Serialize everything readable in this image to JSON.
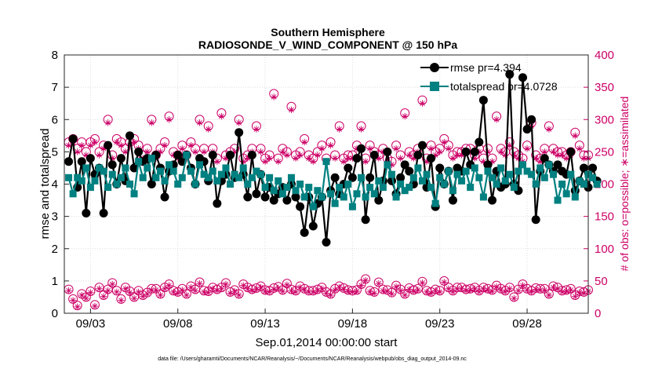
{
  "chart_data": {
    "type": "line",
    "title": "Southern Hemisphere",
    "subtitle": "RADIOSONDE_V_WIND_COMPONENT @ 150 hPa",
    "xlabel": "Sep.01,2014 00:00:00 start",
    "ylabel": "rmse and totalspread",
    "y2label": "# of obs: o=possible; ∗=assimilated",
    "footnote": "data file: /Users/gharamti/Documents/NCAR/Reanalysis/~/Documents/NCAR/Reanalysis/webpub/obs_diag_output_2014-09.nc",
    "xlim": [
      1.5,
      31.5
    ],
    "ylim": [
      0,
      8
    ],
    "y2lim": [
      0,
      400
    ],
    "x_ticks": [
      3,
      8,
      13,
      18,
      23,
      28
    ],
    "x_tick_labels": [
      "09/03",
      "09/08",
      "09/13",
      "09/18",
      "09/23",
      "09/28"
    ],
    "y_ticks": [
      0,
      1,
      2,
      3,
      4,
      5,
      6,
      7,
      8
    ],
    "y2_ticks": [
      0,
      50,
      100,
      150,
      200,
      250,
      300,
      350,
      400
    ],
    "grid": true,
    "colors": {
      "rmse": "#000000",
      "spread": "#008080",
      "obs": "#cc0066"
    },
    "series": [
      {
        "name": "rmse pr=4.394",
        "marker": "circle",
        "values": [
          4.7,
          5.4,
          3.9,
          4.7,
          3.1,
          4.8,
          4.3,
          4.5,
          3.1,
          5.2,
          4.6,
          4.0,
          4.8,
          4.1,
          5.5,
          4.5,
          5.0,
          4.7,
          4.8,
          4.0,
          4.9,
          4.5,
          3.6,
          4.4,
          4.6,
          4.9,
          4.7,
          4.9,
          4.5,
          4.0,
          4.8,
          4.7,
          4.1,
          4.9,
          3.4,
          4.1,
          4.3,
          4.9,
          4.2,
          5.6,
          4.3,
          3.6,
          4.9,
          3.7,
          4.3,
          3.6,
          3.9,
          3.5,
          3.7,
          3.9,
          3.5,
          4.0,
          3.6,
          3.3,
          2.5,
          3.6,
          2.7,
          3.4,
          3.6,
          2.2,
          3.8,
          4.2,
          3.7,
          4.0,
          4.5,
          4.2,
          4.8,
          5.1,
          2.9,
          4.2,
          4.9,
          3.5,
          4.1,
          5.0,
          4.1,
          3.7,
          4.2,
          4.6,
          4.4,
          4.0,
          4.9,
          5.2,
          3.9,
          4.8,
          3.3,
          4.5,
          4.0,
          4.4,
          3.5,
          4.5,
          4.4,
          5.0,
          4.6,
          5.0,
          5.3,
          6.6,
          4.6,
          3.5,
          4.4,
          3.9,
          4.0,
          7.4,
          4.0,
          3.8,
          7.3,
          5.7,
          6.0,
          2.9,
          4.4,
          4.8,
          4.6,
          4.4,
          4.6,
          4.4,
          4.3,
          5.0,
          3.8,
          4.1,
          4.5,
          3.9,
          4.5,
          4.1
        ]
      },
      {
        "name": "totalspread pr=4.0728",
        "marker": "square",
        "values": [
          4.2,
          3.7,
          4.2,
          4.1,
          4.5,
          3.9,
          4.1,
          4.5,
          4.4,
          3.9,
          4.3,
          4.0,
          4.2,
          4.5,
          4.0,
          3.7,
          4.7,
          4.2,
          4.5,
          4.8,
          4.2,
          4.4,
          4.1,
          4.6,
          4.4,
          4.0,
          4.2,
          4.9,
          4.4,
          4.0,
          4.6,
          4.3,
          4.2,
          4.4,
          4.1,
          4.3,
          4.5,
          4.0,
          4.3,
          4.2,
          4.5,
          4.0,
          4.2,
          4.4,
          4.3,
          3.9,
          4.2,
          3.8,
          4.1,
          3.7,
          3.9,
          4.2,
          3.8,
          4.0,
          3.6,
          3.9,
          3.3,
          3.8,
          3.6,
          4.7,
          3.7,
          3.4,
          3.9,
          3.6,
          4.0,
          3.3,
          3.7,
          4.2,
          3.6,
          3.9,
          3.7,
          4.1,
          3.9,
          4.6,
          4.3,
          3.6,
          4.0,
          3.8,
          3.9,
          4.2,
          4.5,
          4.1,
          4.3,
          3.9,
          3.4,
          4.2,
          4.0,
          4.4,
          3.8,
          4.3,
          4.1,
          4.4,
          3.9,
          4.5,
          4.2,
          3.6,
          4.4,
          4.2,
          4.0,
          4.5,
          4.1,
          4.3,
          3.9,
          4.4,
          4.6,
          4.4,
          4.3,
          4.0,
          4.5,
          4.2,
          4.6,
          4.3,
          3.5,
          4.0,
          3.7,
          4.3,
          3.6,
          4.1,
          4.0,
          4.3,
          4.2,
          4.0
        ]
      },
      {
        "name": "obs possible",
        "marker": "open-circle",
        "axis": "right",
        "values": [
          265,
          270,
          255,
          265,
          250,
          265,
          270,
          250,
          260,
          300,
          245,
          270,
          265,
          255,
          265,
          270,
          260,
          245,
          255,
          300,
          245,
          255,
          265,
          305,
          250,
          245,
          260,
          245,
          265,
          255,
          300,
          255,
          290,
          255,
          240,
          310,
          245,
          250,
          255,
          300,
          240,
          245,
          255,
          290,
          255,
          240,
          245,
          340,
          240,
          255,
          250,
          320,
          245,
          250,
          270,
          245,
          240,
          250,
          260,
          240,
          265,
          245,
          290,
          240,
          245,
          245,
          260,
          290,
          240,
          260,
          250,
          245,
          255,
          240,
          235,
          260,
          245,
          310,
          250,
          245,
          255,
          330,
          240,
          260,
          250,
          255,
          270,
          260,
          245,
          250,
          250,
          255,
          255,
          245,
          255,
          240,
          255,
          240,
          305,
          255,
          250,
          265,
          250,
          245,
          240,
          260,
          295,
          245,
          240,
          255,
          290,
          255,
          250,
          250,
          245,
          250,
          280,
          260,
          245,
          245,
          250,
          250
        ]
      },
      {
        "name": "obs assimilated",
        "marker": "star",
        "axis": "right",
        "values": [
          260,
          265,
          250,
          260,
          245,
          260,
          265,
          245,
          255,
          295,
          240,
          265,
          260,
          250,
          260,
          265,
          255,
          240,
          250,
          295,
          240,
          250,
          260,
          300,
          245,
          240,
          255,
          240,
          260,
          250,
          295,
          250,
          285,
          250,
          235,
          305,
          240,
          245,
          250,
          295,
          235,
          240,
          250,
          285,
          250,
          235,
          240,
          335,
          235,
          250,
          245,
          315,
          240,
          245,
          265,
          240,
          235,
          245,
          255,
          235,
          260,
          240,
          285,
          235,
          240,
          240,
          255,
          285,
          235,
          255,
          245,
          240,
          250,
          235,
          230,
          255,
          240,
          305,
          245,
          240,
          250,
          325,
          235,
          255,
          245,
          250,
          265,
          255,
          240,
          245,
          245,
          250,
          250,
          240,
          250,
          235,
          250,
          235,
          300,
          250,
          245,
          260,
          245,
          240,
          235,
          255,
          290,
          240,
          235,
          250,
          285,
          250,
          245,
          245,
          240,
          245,
          275,
          255,
          240,
          240,
          245,
          245
        ]
      },
      {
        "name": "obs possible (lower)",
        "marker": "open-circle",
        "axis": "right",
        "values": [
          37,
          22,
          12,
          30,
          25,
          34,
          13,
          40,
          28,
          37,
          47,
          35,
          22,
          40,
          34,
          25,
          35,
          28,
          32,
          38,
          38,
          30,
          40,
          45,
          35,
          33,
          38,
          30,
          42,
          37,
          48,
          35,
          34,
          40,
          37,
          40,
          47,
          33,
          36,
          30,
          45,
          40,
          37,
          39,
          42,
          36,
          35,
          39,
          41,
          36,
          46,
          37,
          35,
          42,
          38,
          35,
          35,
          37,
          40,
          33,
          30,
          38,
          42,
          39,
          36,
          35,
          36,
          45,
          53,
          35,
          33,
          48,
          37,
          36,
          32,
          43,
          37,
          30,
          39,
          36,
          38,
          49,
          35,
          33,
          37,
          35,
          50,
          40,
          35,
          40,
          40,
          37,
          38,
          40,
          35,
          40,
          38,
          36,
          43,
          38,
          35,
          40,
          25,
          37,
          45,
          38,
          35,
          39,
          38,
          38,
          30,
          42,
          40,
          35,
          36,
          38,
          28,
          34,
          33,
          36,
          38,
          1
        ]
      },
      {
        "name": "obs assimilated (lower)",
        "marker": "star",
        "axis": "right",
        "values": [
          35,
          20,
          10,
          28,
          23,
          32,
          11,
          38,
          26,
          35,
          45,
          33,
          20,
          38,
          32,
          23,
          33,
          26,
          30,
          36,
          36,
          28,
          38,
          43,
          33,
          31,
          36,
          28,
          40,
          35,
          46,
          33,
          32,
          38,
          35,
          38,
          45,
          31,
          34,
          28,
          43,
          38,
          35,
          37,
          40,
          34,
          33,
          37,
          39,
          34,
          44,
          35,
          33,
          40,
          36,
          33,
          33,
          35,
          38,
          31,
          28,
          36,
          40,
          37,
          34,
          33,
          34,
          43,
          51,
          33,
          31,
          46,
          35,
          34,
          30,
          41,
          35,
          28,
          37,
          34,
          36,
          47,
          33,
          31,
          35,
          33,
          48,
          38,
          33,
          38,
          38,
          35,
          36,
          38,
          33,
          38,
          36,
          34,
          41,
          36,
          33,
          38,
          23,
          35,
          43,
          36,
          33,
          37,
          36,
          36,
          28,
          40,
          38,
          33,
          34,
          36,
          26,
          32,
          31,
          34,
          36,
          0
        ]
      }
    ],
    "legend": [
      "rmse pr=4.394",
      "totalspread pr=4.0728"
    ],
    "legend_position": "top-right"
  }
}
